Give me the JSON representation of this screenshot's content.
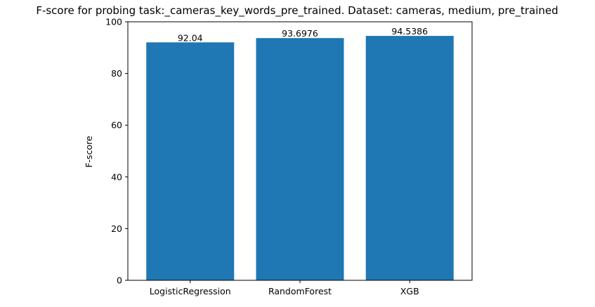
{
  "chart_data": {
    "type": "bar",
    "title": "F-score for probing task:_cameras_key_words_pre_trained. Dataset: cameras, medium, pre_trained",
    "xlabel": "",
    "ylabel": "F-score",
    "categories": [
      "LogisticRegression",
      "RandomForest",
      "XGB"
    ],
    "values": [
      92.04,
      93.6976,
      94.5386
    ],
    "value_labels": [
      "92.04",
      "93.6976",
      "94.5386"
    ],
    "ylim": [
      0,
      100
    ],
    "yticks": [
      0,
      20,
      40,
      60,
      80,
      100
    ],
    "grid": false,
    "legend": "none",
    "bar_color": "#1f77b4"
  }
}
